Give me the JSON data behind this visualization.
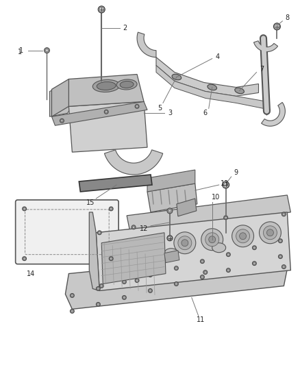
{
  "figsize": [
    4.38,
    5.33
  ],
  "dpi": 100,
  "bg": "#ffffff",
  "gray_light": "#d8d8d8",
  "gray_mid": "#bbbbbb",
  "gray_dark": "#888888",
  "edge": "#555555",
  "black": "#222222"
}
